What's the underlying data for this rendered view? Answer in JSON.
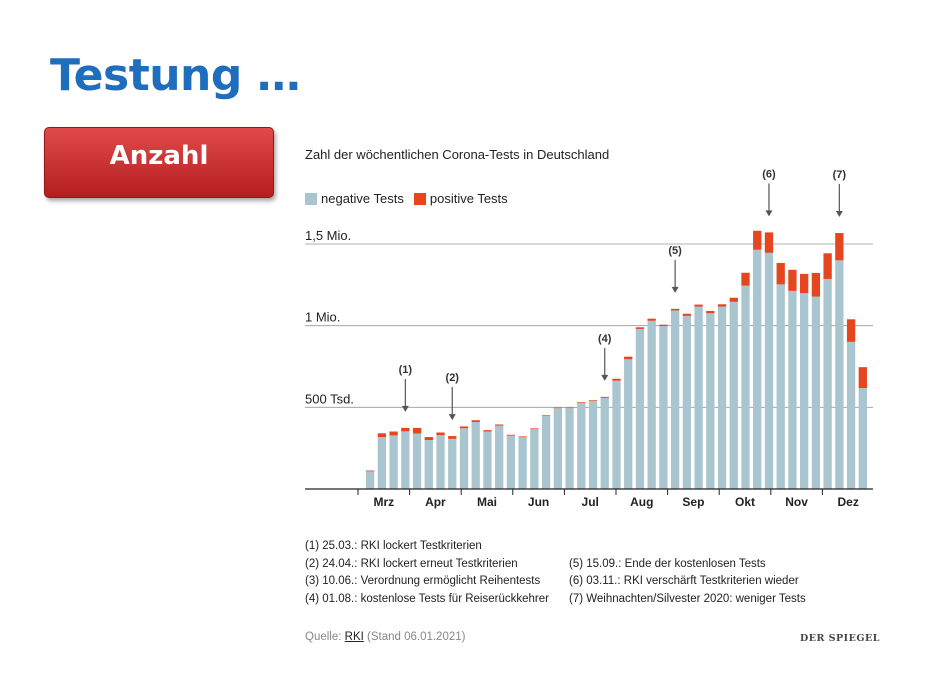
{
  "slide": {
    "title": "Testung …",
    "tag": "Anzahl"
  },
  "chart_data": {
    "type": "bar",
    "title": "Zahl der wöchentlichen Corona-Tests in Deutschland",
    "stacked": true,
    "legend": {
      "position": "top-left",
      "items": [
        "negative Tests",
        "positive Tests"
      ]
    },
    "ylim": [
      0,
      1500000
    ],
    "yticks": [
      {
        "value": 500000,
        "label": "500 Tsd."
      },
      {
        "value": 1000000,
        "label": "1 Mio."
      },
      {
        "value": 1500000,
        "label": "1,5 Mio."
      }
    ],
    "xticks": [
      "Mrz",
      "Apr",
      "Mai",
      "Jun",
      "Jul",
      "Aug",
      "Sep",
      "Okt",
      "Nov",
      "Dez"
    ],
    "colors": {
      "negative": "#a9c5d0",
      "positive": "#e5451f",
      "gridline": "#999999",
      "arrow": "#555555"
    },
    "series": [
      {
        "name": "negative Tests",
        "values": [
          108000,
          318000,
          328000,
          353000,
          340000,
          300000,
          329000,
          307000,
          372000,
          410000,
          352000,
          388000,
          327000,
          317000,
          366000,
          448000,
          495000,
          495000,
          528000,
          538000,
          558000,
          663000,
          794000,
          980000,
          1030000,
          998000,
          1093000,
          1060000,
          1117000,
          1076000,
          1117000,
          1146000,
          1245000,
          1465000,
          1446000,
          1253000,
          1213000,
          1199000,
          1178000,
          1286000,
          1400000,
          901000,
          618000
        ]
      },
      {
        "name": "positive Tests",
        "values": [
          5000,
          23000,
          24000,
          21000,
          34000,
          18000,
          17000,
          17000,
          11000,
          11000,
          8000,
          7000,
          5000,
          5000,
          5000,
          4000,
          3000,
          3000,
          4000,
          5000,
          6000,
          12000,
          16000,
          10000,
          13000,
          8000,
          10000,
          13000,
          12000,
          14000,
          14000,
          25000,
          79000,
          116000,
          125000,
          131000,
          129000,
          118000,
          145000,
          157000,
          167000,
          138000,
          128000
        ]
      }
    ],
    "markers": [
      {
        "label": "(1)",
        "week": 3
      },
      {
        "label": "(2)",
        "week": 7
      },
      {
        "label": "(4)",
        "week": 20
      },
      {
        "label": "(5)",
        "week": 26
      },
      {
        "label": "(6)",
        "week": 34
      },
      {
        "label": "(7)",
        "week": 40
      }
    ],
    "annotations": {
      "left": [
        "(1) 25.03.: RKI lockert Testkriterien",
        "(2) 24.04.: RKI lockert erneut Testkriterien",
        "(3) 10.06.: Verordnung ermöglicht Reihentests",
        "(4) 01.08.: kostenlose Tests für Reiserückkehrer"
      ],
      "right": [
        "",
        "(5) 15.09.: Ende der kostenlosen Tests",
        "(6) 03.11.: RKI verschärft Testkriterien wieder",
        "(7) Weihnachten/Silvester 2020: weniger Tests"
      ]
    },
    "source": {
      "prefix": "Quelle: ",
      "name": "RKI",
      "suffix": " (Stand 06.01.2021)"
    },
    "brand": "DER SPIEGEL"
  }
}
